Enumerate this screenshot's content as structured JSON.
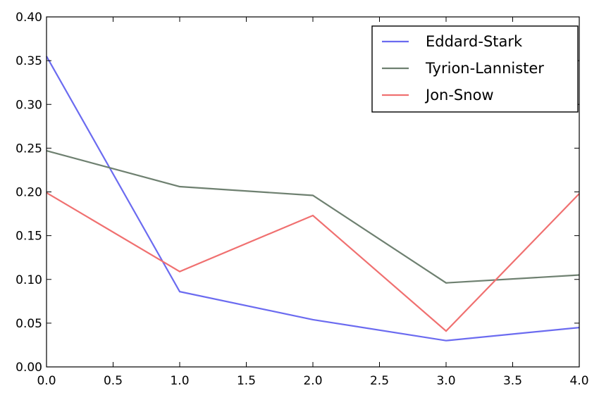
{
  "chart_data": {
    "type": "line",
    "x": [
      0,
      1,
      2,
      3,
      4
    ],
    "series": [
      {
        "name": "Eddard-Stark",
        "color": "#6b6bf0",
        "values": [
          0.355,
          0.086,
          0.054,
          0.03,
          0.045
        ]
      },
      {
        "name": "Tyrion-Lannister",
        "color": "#6e8070",
        "values": [
          0.247,
          0.206,
          0.196,
          0.096,
          0.105
        ]
      },
      {
        "name": "Jon-Snow",
        "color": "#f07070",
        "values": [
          0.199,
          0.109,
          0.173,
          0.041,
          0.198
        ]
      }
    ],
    "xlim": [
      0,
      4
    ],
    "ylim": [
      0,
      0.4
    ],
    "xticks": [
      "0.0",
      "0.5",
      "1.0",
      "1.5",
      "2.0",
      "2.5",
      "3.0",
      "3.5",
      "4.0"
    ],
    "yticks": [
      "0.00",
      "0.05",
      "0.10",
      "0.15",
      "0.20",
      "0.25",
      "0.30",
      "0.35",
      "0.40"
    ],
    "grid": false,
    "legend_position": "top-right"
  }
}
